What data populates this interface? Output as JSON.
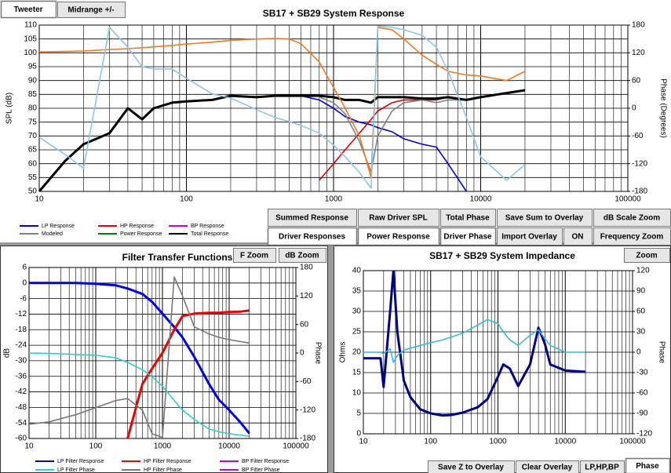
{
  "buttons": {
    "tweeter": "Tweeter",
    "midrange": "Midrange  +/-",
    "summed": "Summed Response",
    "raw": "Raw Driver SPL",
    "total_phase": "Total Phase",
    "save_sum": "Save Sum to Overlay",
    "db_scale_zoom": "dB Scale Zoom",
    "driver_responses": "Driver Responses",
    "power": "Power Response",
    "driver_phase": "Driver Phase",
    "import": "Import Overlay",
    "on": "ON",
    "frequency_zoom": "Frequency Zoom",
    "f_zoom": "F Zoom",
    "db_zoom": "dB Zoom",
    "zoom": "Zoom",
    "save_z": "Save Z to Overlay",
    "clear": "Clear Overlay",
    "lphpbp": "LP,HP,BP",
    "phase": "Phase"
  },
  "chart_data": [
    {
      "type": "line",
      "title": "SB17 + SB29    System Response",
      "ylabel": "SPL (dB)",
      "y2label": "Phase (Degrees)",
      "xscale": "log",
      "xlim": [
        10,
        100000
      ],
      "xticks": [
        10,
        100,
        1000,
        10000,
        100000
      ],
      "ylim": [
        50,
        110
      ],
      "yticks": [
        50,
        55,
        60,
        65,
        70,
        75,
        80,
        85,
        90,
        95,
        100,
        105,
        110
      ],
      "y2lim": [
        -180,
        180
      ],
      "y2ticks": [
        -180,
        -120,
        -60,
        0,
        60,
        120,
        180
      ],
      "grid": true,
      "x": [
        10,
        15,
        20,
        30,
        40,
        50,
        60,
        80,
        100,
        150,
        200,
        300,
        400,
        500,
        600,
        800,
        1000,
        1200,
        1500,
        1800,
        2000,
        2500,
        3000,
        4000,
        5000,
        6000,
        8000,
        10000,
        15000,
        20000
      ],
      "series": [
        {
          "name": "LP Response",
          "color": "#0000cc",
          "values": [
            50,
            61,
            67,
            71,
            80,
            76,
            80,
            82,
            82.5,
            83,
            84.5,
            84,
            84.5,
            84.5,
            84.5,
            83,
            80,
            77,
            75,
            74,
            73,
            71.5,
            69,
            67,
            66,
            60,
            50,
            null,
            null,
            null
          ]
        },
        {
          "name": "HP Response",
          "color": "#dd0000",
          "values": [
            null,
            null,
            null,
            null,
            null,
            null,
            null,
            null,
            null,
            null,
            null,
            null,
            null,
            null,
            null,
            54,
            60,
            65,
            71,
            76,
            79,
            82,
            83,
            83,
            83,
            84,
            83,
            84,
            85.5,
            86.5
          ]
        },
        {
          "name": "BP Response",
          "color": "#cc00cc",
          "values": [
            null,
            null,
            null,
            null,
            null,
            null,
            null,
            null,
            null,
            null,
            null,
            null,
            null,
            null,
            null,
            null,
            null,
            null,
            null,
            null,
            null,
            null,
            null,
            null,
            null,
            null,
            null,
            null,
            null,
            null
          ]
        },
        {
          "name": "Modeled",
          "color": "#808080",
          "values": [
            null,
            null,
            null,
            null,
            null,
            null,
            null,
            null,
            null,
            null,
            null,
            null,
            null,
            null,
            null,
            84,
            82,
            78,
            68,
            57,
            70,
            79,
            82,
            83,
            82,
            83,
            83,
            84,
            null,
            null
          ]
        },
        {
          "name": "Power Response",
          "color": "#008000",
          "values": [
            null,
            null,
            null,
            null,
            null,
            null,
            null,
            null,
            null,
            null,
            null,
            null,
            null,
            null,
            null,
            null,
            null,
            null,
            null,
            null,
            null,
            null,
            null,
            null,
            null,
            null,
            null,
            null,
            null,
            null
          ]
        },
        {
          "name": "Total Response",
          "color": "#000000",
          "values": [
            50,
            61,
            67,
            71,
            80,
            76,
            80,
            82,
            82.5,
            83,
            84.5,
            84,
            84.5,
            84.5,
            84.5,
            84.5,
            84,
            83,
            83,
            82,
            84,
            84,
            84,
            83.5,
            83.5,
            84,
            83,
            84,
            85.5,
            86.5
          ]
        },
        {
          "color": "#f07820",
          "axis": "y2",
          "values": [
            122,
            123,
            124,
            127,
            129,
            131,
            133,
            136,
            139,
            143,
            147,
            150,
            151,
            150,
            140,
            100,
            45,
            0,
            -60,
            -150,
            175,
            170,
            150,
            115,
            95,
            80,
            72,
            70,
            60,
            80
          ]
        },
        {
          "color": "#8cc4ea",
          "axis": "y2",
          "values": [
            -63,
            -100,
            -130,
            175,
            132,
            90,
            85,
            85,
            65,
            31,
            22,
            -3,
            -20,
            -29,
            -37,
            -54,
            -80,
            -105,
            -139,
            -173,
            178,
            175,
            170,
            158,
            132,
            81,
            -20,
            -105,
            -156,
            -122
          ]
        }
      ]
    },
    {
      "type": "line",
      "title": "Filter Transfer Functions",
      "ylabel": "dB",
      "y2label": "Phase",
      "xscale": "log",
      "xlim": [
        10,
        100000
      ],
      "xticks": [
        10,
        100,
        1000,
        10000,
        100000
      ],
      "ylim": [
        -60,
        6
      ],
      "yticks": [
        6,
        0,
        -6,
        -12,
        -18,
        -24,
        -30,
        -36,
        -42,
        -48,
        -54,
        -60
      ],
      "y2lim": [
        -180,
        180
      ],
      "y2ticks": [
        180,
        120,
        60,
        0,
        -60,
        -120,
        -180
      ],
      "grid": true,
      "x": [
        10,
        20,
        50,
        100,
        200,
        300,
        500,
        700,
        1000,
        1500,
        2000,
        3000,
        5000,
        7000,
        10000,
        15000,
        20000
      ],
      "series": [
        {
          "name": "LP Filter Response",
          "color": "#0000dd",
          "values": [
            0,
            0,
            0,
            -0.3,
            -0.9,
            -2.1,
            -4.2,
            -7.3,
            -11.8,
            -17,
            -21,
            -28.5,
            -39,
            -45,
            -49,
            -54,
            -58
          ]
        },
        {
          "name": "HP Filter Response",
          "color": "#ee0000",
          "values": [
            null,
            null,
            null,
            null,
            null,
            -60,
            -39,
            -33,
            -27,
            -18,
            -12.7,
            -11.8,
            -11.5,
            -11.5,
            -11.2,
            -11,
            -10.6
          ]
        },
        {
          "name": "BP Filter Response",
          "color": "#cc00cc",
          "values": [
            null,
            null,
            null,
            null,
            null,
            null,
            null,
            null,
            null,
            null,
            null,
            null,
            null,
            null,
            null,
            null,
            null
          ]
        },
        {
          "name": "LP Filter Phase",
          "color": "#33cccc",
          "axis": "y2",
          "values": [
            0,
            -1,
            -3,
            -5,
            -10,
            -20,
            -35,
            -50,
            -70,
            -100,
            -120,
            -140,
            -160,
            -166,
            -170,
            -173,
            -175
          ]
        },
        {
          "name": "HP Filter Phase",
          "color": "#777777",
          "axis": "y2",
          "values": [
            -150,
            -145,
            -130,
            -115,
            -100,
            -96,
            -120,
            -170,
            -178,
            160,
            120,
            55,
            40,
            33,
            28,
            24,
            21
          ]
        },
        {
          "name": "BP Filter Phase",
          "color": "#cc00cc",
          "axis": "y2",
          "values": [
            null,
            null,
            null,
            null,
            null,
            null,
            null,
            null,
            null,
            null,
            null,
            null,
            null,
            null,
            null,
            null,
            null
          ]
        }
      ]
    },
    {
      "type": "line",
      "title": "SB17 + SB29    System Impedance",
      "ylabel": "Ohms",
      "y2label": "Phase",
      "xscale": "log",
      "xlim": [
        10,
        100000
      ],
      "xticks": [
        10,
        100,
        1000,
        10000,
        100000
      ],
      "ylim": [
        0,
        40
      ],
      "yticks": [
        0,
        5,
        10,
        15,
        20,
        25,
        30,
        35,
        40
      ],
      "y2lim": [
        -120,
        120
      ],
      "y2ticks": [
        -120,
        -90,
        -60,
        -30,
        0,
        30,
        60,
        90,
        120
      ],
      "grid": true,
      "x": [
        10,
        18,
        20,
        25,
        28,
        32,
        40,
        50,
        70,
        100,
        150,
        200,
        300,
        500,
        700,
        1000,
        1200,
        1500,
        2000,
        3000,
        4000,
        5000,
        6000,
        10000,
        20000
      ],
      "series": [
        {
          "color": "#000080",
          "values": [
            18.5,
            18.5,
            11.5,
            30,
            40,
            25,
            13,
            9,
            6,
            5,
            4.5,
            4.6,
            5.2,
            6.5,
            8.5,
            14,
            17,
            16,
            11.7,
            17,
            26,
            22,
            17,
            15.5,
            15.2
          ]
        },
        {
          "color": "#33bbdd",
          "axis": "y2",
          "values": [
            0,
            0,
            -2,
            5,
            -15,
            -5,
            3,
            6,
            10,
            14,
            18,
            22,
            28,
            40,
            48,
            42,
            30,
            18,
            10,
            25,
            33,
            20,
            10,
            0,
            0
          ]
        }
      ]
    }
  ]
}
